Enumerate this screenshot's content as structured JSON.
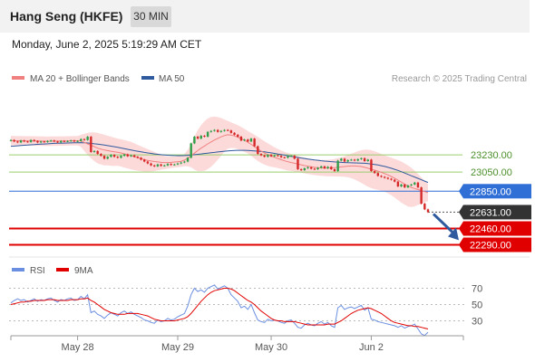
{
  "header": {
    "instrument": "Hang Seng (HKFE)",
    "timeframe": "30 MIN",
    "datetime": "Monday, June 2, 2025 5:19:29 AM CET"
  },
  "colors": {
    "ma20": "#f08080",
    "bollinger_band": "#fbd3d3",
    "ma50": "#2f5a9e",
    "candle_up": "#2e9e49",
    "candle_down": "#d62828",
    "resistance_green": "#9acd6e",
    "pivot_blue": "#2f6fd6",
    "support_red": "#e00000",
    "last_price": "#333333",
    "rsi": "#6a8ee0",
    "rsi_ma": "#e00000",
    "arrow": "#2f5a9e"
  },
  "chart_data": [
    {
      "type": "candlestick",
      "legend": [
        {
          "name": "MA 20 + Bollinger Bands",
          "color": "#f08080"
        },
        {
          "name": "MA 50",
          "color": "#2f5a9e"
        }
      ],
      "legend_position": "top-left",
      "copyright": "Research © 2025 Trading Central",
      "x_ticks": [
        "May 28",
        "May 29",
        "May 30",
        "Jun 2"
      ],
      "ylim": [
        22200,
        23950
      ],
      "levels": [
        {
          "value": 23230.0,
          "label": "23230.00",
          "style": "resistance"
        },
        {
          "value": 23050.0,
          "label": "23050.00",
          "style": "resistance"
        },
        {
          "value": 22850.0,
          "label": "22850.00",
          "style": "pivot"
        },
        {
          "value": 22631.0,
          "label": "22631.00",
          "style": "last"
        },
        {
          "value": 22460.0,
          "label": "22460.00",
          "style": "support"
        },
        {
          "value": 22290.0,
          "label": "22290.00",
          "style": "support"
        }
      ],
      "arrow": {
        "from": 22631,
        "to": 22300,
        "direction": "down"
      },
      "close": [
        23385,
        23370,
        23360,
        23380,
        23370,
        23365,
        23385,
        23375,
        23360,
        23370,
        23365,
        23375,
        23380,
        23370,
        23360,
        23375,
        23370,
        23375,
        23380,
        23370,
        23375,
        23395,
        23385,
        23420,
        23260,
        23270,
        23240,
        23220,
        23190,
        23210,
        23230,
        23210,
        23200,
        23220,
        23235,
        23215,
        23225,
        23210,
        23200,
        23180,
        23160,
        23140,
        23120,
        23110,
        23130,
        23115,
        23120,
        23135,
        23125,
        23130,
        23140,
        23150,
        23160,
        23200,
        23350,
        23420,
        23400,
        23430,
        23420,
        23470,
        23480,
        23490,
        23470,
        23480,
        23490,
        23485,
        23460,
        23440,
        23420,
        23380,
        23390,
        23370,
        23400,
        23320,
        23240,
        23225,
        23210,
        23230,
        23215,
        23225,
        23220,
        23205,
        23200,
        23215,
        23220,
        23190,
        23080,
        23070,
        23090,
        23100,
        23085,
        23080,
        23095,
        23110,
        23090,
        23105,
        23080,
        23060,
        23170,
        23190,
        23160,
        23175,
        23180,
        23170,
        23185,
        23195,
        23165,
        23180,
        23060,
        23040,
        23010,
        23000,
        22990,
        22980,
        22970,
        22950,
        22900,
        22920,
        22890,
        22910,
        22920,
        22940,
        22890,
        22720,
        22660,
        22631
      ],
      "ma20": [
        23380,
        23378,
        23377,
        23378,
        23377,
        23376,
        23377,
        23376,
        23375,
        23374,
        23373,
        23372,
        23373,
        23374,
        23374,
        23375,
        23375,
        23376,
        23377,
        23377,
        23378,
        23376,
        23360,
        23345,
        23330,
        23315,
        23300,
        23290,
        23280,
        23275,
        23268,
        23262,
        23258,
        23250,
        23241,
        23232,
        23222,
        23210,
        23200,
        23190,
        23180,
        23172,
        23166,
        23160,
        23156,
        23152,
        23150,
        23150,
        23152,
        23155,
        23158,
        23163,
        23175,
        23195,
        23220,
        23248,
        23275,
        23300,
        23322,
        23345,
        23365,
        23385,
        23402,
        23418,
        23432,
        23440,
        23436,
        23428,
        23415,
        23400,
        23382,
        23362,
        23340,
        23316,
        23292,
        23270,
        23250,
        23232,
        23218,
        23205,
        23192,
        23180,
        23168,
        23158,
        23150,
        23142,
        23134,
        23126,
        23118,
        23112,
        23106,
        23100,
        23096,
        23094,
        23092,
        23092,
        23094,
        23096,
        23100,
        23104,
        23108,
        23112,
        23114,
        23114,
        23112,
        23108,
        23100,
        23090,
        23080,
        23070,
        23060,
        23048,
        23034,
        23020,
        23004,
        22986,
        22966,
        22945,
        22925,
        22905,
        22890,
        22878,
        22868,
        22856,
        22846,
        22836
      ],
      "bb_upper": [
        23430,
        23428,
        23426,
        23427,
        23426,
        23425,
        23426,
        23425,
        23424,
        23423,
        23422,
        23421,
        23422,
        23423,
        23423,
        23424,
        23424,
        23425,
        23426,
        23426,
        23428,
        23440,
        23450,
        23460,
        23465,
        23465,
        23460,
        23450,
        23440,
        23430,
        23420,
        23410,
        23400,
        23392,
        23385,
        23376,
        23365,
        23350,
        23335,
        23320,
        23305,
        23290,
        23275,
        23260,
        23245,
        23230,
        23220,
        23215,
        23212,
        23212,
        23216,
        23222,
        23240,
        23280,
        23340,
        23420,
        23490,
        23540,
        23580,
        23610,
        23625,
        23630,
        23625,
        23615,
        23600,
        23585,
        23570,
        23555,
        23540,
        23522,
        23502,
        23480,
        23460,
        23440,
        23418,
        23395,
        23372,
        23350,
        23330,
        23310,
        23292,
        23276,
        23262,
        23250,
        23238,
        23228,
        23218,
        23208,
        23200,
        23194,
        23188,
        23182,
        23178,
        23176,
        23176,
        23178,
        23182,
        23188,
        23196,
        23205,
        23215,
        23228,
        23242,
        23255,
        23268,
        23278,
        23284,
        23284,
        23278,
        23268,
        23255,
        23240,
        23225,
        23212,
        23200,
        23188,
        23175,
        23160,
        23140,
        23120,
        23095,
        23065,
        23030,
        22995,
        22960,
        22925
      ],
      "bb_lower": [
        23330,
        23328,
        23328,
        23329,
        23328,
        23327,
        23328,
        23327,
        23326,
        23325,
        23324,
        23323,
        23324,
        23325,
        23325,
        23326,
        23326,
        23327,
        23328,
        23328,
        23328,
        23312,
        23270,
        23230,
        23195,
        23165,
        23140,
        23130,
        23120,
        23120,
        23116,
        23114,
        23116,
        23108,
        23097,
        23088,
        23079,
        23070,
        23065,
        23060,
        23055,
        23054,
        23057,
        23060,
        23067,
        23074,
        23080,
        23085,
        23092,
        23098,
        23100,
        23104,
        23110,
        23110,
        23100,
        23076,
        23060,
        23060,
        23064,
        23080,
        23105,
        23140,
        23179,
        23221,
        23264,
        23295,
        23302,
        23301,
        23290,
        23278,
        23262,
        23244,
        23220,
        23192,
        23166,
        23145,
        23128,
        23114,
        23106,
        23100,
        23092,
        23084,
        23074,
        23066,
        23062,
        23056,
        23050,
        23044,
        23036,
        23030,
        23024,
        23018,
        23014,
        23012,
        23008,
        23006,
        23006,
        23004,
        23004,
        23003,
        23001,
        22996,
        22986,
        22973,
        22956,
        22938,
        22916,
        22896,
        22882,
        22872,
        22865,
        22856,
        22843,
        22828,
        22808,
        22784,
        22757,
        22730,
        22710,
        22690,
        22685,
        22691,
        22706,
        22717,
        22732,
        22747
      ],
      "ma50": [
        23320,
        23322,
        23325,
        23328,
        23330,
        23332,
        23335,
        23337,
        23340,
        23342,
        23344,
        23346,
        23348,
        23350,
        23351,
        23352,
        23353,
        23354,
        23355,
        23356,
        23357,
        23358,
        23356,
        23354,
        23350,
        23346,
        23342,
        23337,
        23332,
        23327,
        23321,
        23315,
        23309,
        23302,
        23295,
        23288,
        23281,
        23274,
        23268,
        23262,
        23256,
        23250,
        23245,
        23240,
        23236,
        23232,
        23229,
        23226,
        23224,
        23223,
        23222,
        23222,
        23223,
        23225,
        23228,
        23232,
        23236,
        23240,
        23244,
        23248,
        23252,
        23256,
        23260,
        23264,
        23268,
        23272,
        23274,
        23276,
        23277,
        23277,
        23277,
        23276,
        23274,
        23272,
        23269,
        23265,
        23261,
        23256,
        23251,
        23245,
        23239,
        23233,
        23227,
        23221,
        23215,
        23209,
        23203,
        23197,
        23192,
        23187,
        23182,
        23177,
        23173,
        23169,
        23165,
        23162,
        23159,
        23156,
        23154,
        23152,
        23150,
        23148,
        23147,
        23146,
        23145,
        23144,
        23142,
        23139,
        23135,
        23130,
        23124,
        23117,
        23109,
        23100,
        23090,
        23079,
        23067,
        23054,
        23040,
        23026,
        23012,
        22998,
        22984,
        22970,
        22956,
        22942
      ]
    },
    {
      "type": "line",
      "legend": [
        {
          "name": "RSI",
          "color": "#6a8ee0"
        },
        {
          "name": "9MA",
          "color": "#e00000"
        }
      ],
      "ylim": [
        15,
        85
      ],
      "y_ticks": [
        70,
        50,
        30
      ],
      "rsi": [
        52,
        55,
        57,
        55,
        56,
        53,
        55,
        57,
        54,
        56,
        55,
        57,
        58,
        55,
        53,
        56,
        55,
        57,
        58,
        55,
        56,
        60,
        57,
        62,
        40,
        42,
        38,
        36,
        33,
        37,
        40,
        38,
        36,
        40,
        42,
        39,
        41,
        38,
        36,
        34,
        31,
        30,
        28,
        27,
        31,
        29,
        30,
        33,
        31,
        32,
        35,
        37,
        39,
        48,
        62,
        70,
        66,
        68,
        65,
        70,
        72,
        74,
        69,
        71,
        73,
        70,
        62,
        58,
        54,
        46,
        48,
        44,
        50,
        40,
        31,
        29,
        28,
        32,
        30,
        31,
        30,
        28,
        27,
        30,
        31,
        27,
        22,
        21,
        25,
        27,
        25,
        24,
        27,
        29,
        26,
        28,
        24,
        22,
        46,
        49,
        44,
        46,
        47,
        45,
        47,
        49,
        43,
        46,
        32,
        31,
        29,
        28,
        27,
        26,
        25,
        24,
        22,
        24,
        21,
        23,
        24,
        26,
        20,
        14,
        12,
        16
      ],
      "rsi_ma": [
        50,
        51,
        52,
        53,
        53,
        54,
        54,
        55,
        55,
        55,
        55,
        56,
        56,
        56,
        55,
        55,
        55,
        55,
        56,
        56,
        56,
        57,
        57,
        58,
        55,
        53,
        50,
        47,
        44,
        42,
        40,
        39,
        38,
        38,
        38,
        39,
        39,
        39,
        39,
        38,
        37,
        36,
        34,
        32,
        31,
        30,
        30,
        30,
        30,
        30,
        31,
        32,
        33,
        35,
        39,
        44,
        49,
        54,
        58,
        62,
        65,
        67,
        68,
        69,
        70,
        70,
        69,
        67,
        64,
        61,
        58,
        55,
        53,
        50,
        46,
        42,
        39,
        36,
        33,
        31,
        30,
        30,
        29,
        29,
        29,
        29,
        28,
        27,
        26,
        25,
        25,
        25,
        25,
        25,
        25,
        26,
        26,
        26,
        28,
        30,
        33,
        36,
        39,
        41,
        43,
        44,
        45,
        46,
        45,
        43,
        41,
        39,
        36,
        33,
        30,
        28,
        27,
        26,
        25,
        24,
        24,
        23,
        23,
        22,
        21,
        20
      ]
    }
  ]
}
